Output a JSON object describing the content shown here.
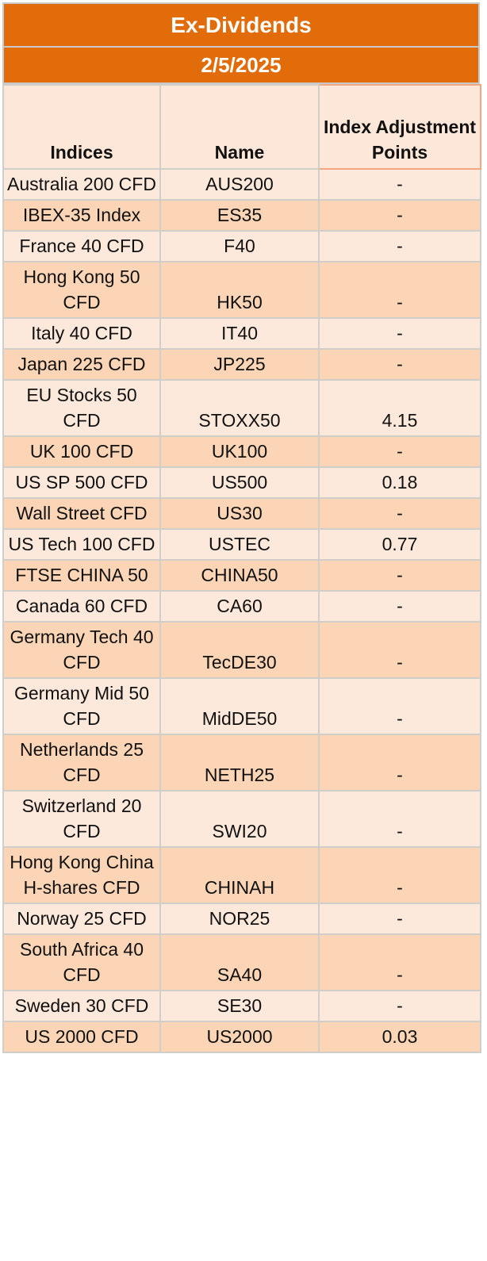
{
  "title": "Ex-Dividends",
  "date": "2/5/2025",
  "headers": {
    "indices": "Indices",
    "name": "Name",
    "points": "Index Adjustment Points"
  },
  "rows": [
    {
      "index": "Australia 200 CFD",
      "name": "AUS200",
      "points": "-"
    },
    {
      "index": "IBEX-35 Index",
      "name": "ES35",
      "points": "-"
    },
    {
      "index": "France 40 CFD",
      "name": "F40",
      "points": "-"
    },
    {
      "index": "Hong Kong 50 CFD",
      "name": "HK50",
      "points": "-"
    },
    {
      "index": "Italy 40 CFD",
      "name": "IT40",
      "points": "-"
    },
    {
      "index": "Japan 225 CFD",
      "name": "JP225",
      "points": "-"
    },
    {
      "index": "EU Stocks 50 CFD",
      "name": "STOXX50",
      "points": "4.15"
    },
    {
      "index": "UK 100 CFD",
      "name": "UK100",
      "points": "-"
    },
    {
      "index": "US SP 500 CFD",
      "name": "US500",
      "points": "0.18"
    },
    {
      "index": "Wall Street CFD",
      "name": "US30",
      "points": "-"
    },
    {
      "index": "US Tech 100 CFD",
      "name": "USTEC",
      "points": "0.77"
    },
    {
      "index": "FTSE CHINA 50",
      "name": "CHINA50",
      "points": "-"
    },
    {
      "index": "Canada 60 CFD",
      "name": "CA60",
      "points": "-"
    },
    {
      "index": "Germany Tech 40 CFD",
      "name": "TecDE30",
      "points": "-"
    },
    {
      "index": "Germany Mid 50 CFD",
      "name": "MidDE50",
      "points": "-"
    },
    {
      "index": "Netherlands 25 CFD",
      "name": "NETH25",
      "points": "-"
    },
    {
      "index": "Switzerland 20 CFD",
      "name": "SWI20",
      "points": "-"
    },
    {
      "index": "Hong Kong China H-shares CFD",
      "name": "CHINAH",
      "points": "-"
    },
    {
      "index": "Norway 25 CFD",
      "name": "NOR25",
      "points": "-"
    },
    {
      "index": "South Africa 40 CFD",
      "name": "SA40",
      "points": "-"
    },
    {
      "index": "Sweden 30 CFD",
      "name": "SE30",
      "points": "-"
    },
    {
      "index": "US 2000 CFD",
      "name": "US2000",
      "points": "0.03"
    }
  ],
  "colors": {
    "band": "#e26b0a",
    "row_light": "#fde9db",
    "row_dark": "#fbd5b5"
  }
}
